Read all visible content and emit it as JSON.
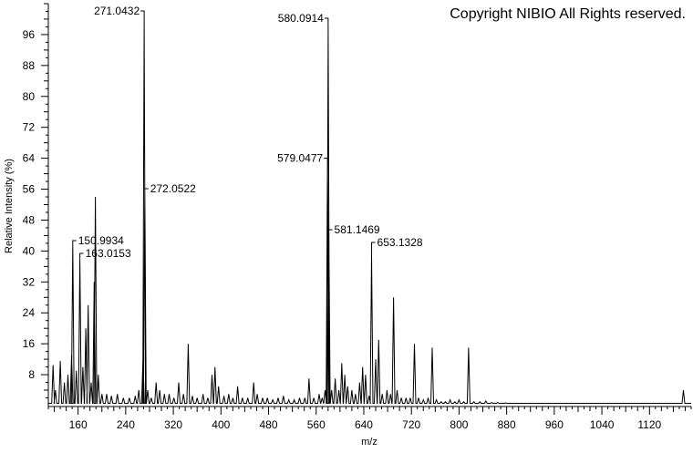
{
  "copyright": "Copyright NIBIO All Rights reserved.",
  "chart_data": {
    "type": "line",
    "title": "",
    "xlabel": "m/z",
    "ylabel": "Relative Intensity (%)",
    "xlim": [
      110,
      1190
    ],
    "ylim": [
      0,
      104
    ],
    "x_ticks": [
      160,
      240,
      320,
      400,
      480,
      560,
      640,
      720,
      800,
      880,
      960,
      1040,
      1120
    ],
    "y_ticks": [
      8,
      16,
      24,
      32,
      40,
      48,
      56,
      64,
      72,
      80,
      88,
      96
    ],
    "grid": false,
    "series": [
      {
        "name": "",
        "color": "#000000",
        "peaks": [
          {
            "x": 118,
            "y": 10.5
          },
          {
            "x": 122,
            "y": 4
          },
          {
            "x": 130,
            "y": 11.5
          },
          {
            "x": 137,
            "y": 6
          },
          {
            "x": 143,
            "y": 8
          },
          {
            "x": 149,
            "y": 13
          },
          {
            "x": 151,
            "y": 42
          },
          {
            "x": 157,
            "y": 9
          },
          {
            "x": 163,
            "y": 38
          },
          {
            "x": 168,
            "y": 10
          },
          {
            "x": 173,
            "y": 20
          },
          {
            "x": 177,
            "y": 26
          },
          {
            "x": 182,
            "y": 6
          },
          {
            "x": 187,
            "y": 32
          },
          {
            "x": 189,
            "y": 54
          },
          {
            "x": 194,
            "y": 8
          },
          {
            "x": 200,
            "y": 3
          },
          {
            "x": 208,
            "y": 3
          },
          {
            "x": 216,
            "y": 2.5
          },
          {
            "x": 226,
            "y": 3
          },
          {
            "x": 236,
            "y": 2
          },
          {
            "x": 246,
            "y": 2
          },
          {
            "x": 256,
            "y": 2.5
          },
          {
            "x": 262,
            "y": 4
          },
          {
            "x": 269,
            "y": 12
          },
          {
            "x": 271.0432,
            "y": 100
          },
          {
            "x": 272.0522,
            "y": 56
          },
          {
            "x": 277,
            "y": 4
          },
          {
            "x": 283,
            "y": 2
          },
          {
            "x": 291,
            "y": 6
          },
          {
            "x": 297,
            "y": 4
          },
          {
            "x": 305,
            "y": 3
          },
          {
            "x": 313,
            "y": 3
          },
          {
            "x": 321,
            "y": 2
          },
          {
            "x": 329,
            "y": 6
          },
          {
            "x": 337,
            "y": 3
          },
          {
            "x": 345,
            "y": 16
          },
          {
            "x": 352,
            "y": 2.5
          },
          {
            "x": 360,
            "y": 2
          },
          {
            "x": 370,
            "y": 3
          },
          {
            "x": 378,
            "y": 2
          },
          {
            "x": 385,
            "y": 8
          },
          {
            "x": 390,
            "y": 10
          },
          {
            "x": 396,
            "y": 5
          },
          {
            "x": 405,
            "y": 2.5
          },
          {
            "x": 413,
            "y": 3
          },
          {
            "x": 420,
            "y": 2
          },
          {
            "x": 428,
            "y": 5
          },
          {
            "x": 436,
            "y": 2
          },
          {
            "x": 445,
            "y": 2
          },
          {
            "x": 455,
            "y": 6
          },
          {
            "x": 461,
            "y": 3
          },
          {
            "x": 470,
            "y": 2
          },
          {
            "x": 478,
            "y": 2
          },
          {
            "x": 487,
            "y": 1.5
          },
          {
            "x": 496,
            "y": 2
          },
          {
            "x": 505,
            "y": 2.5
          },
          {
            "x": 514,
            "y": 1.5
          },
          {
            "x": 523,
            "y": 1.5
          },
          {
            "x": 532,
            "y": 2
          },
          {
            "x": 541,
            "y": 2
          },
          {
            "x": 548,
            "y": 7
          },
          {
            "x": 556,
            "y": 2
          },
          {
            "x": 565,
            "y": 3
          },
          {
            "x": 570,
            "y": 2
          },
          {
            "x": 575,
            "y": 4
          },
          {
            "x": 579.0477,
            "y": 64
          },
          {
            "x": 580.0914,
            "y": 98
          },
          {
            "x": 581.1469,
            "y": 45
          },
          {
            "x": 586,
            "y": 4
          },
          {
            "x": 592,
            "y": 7
          },
          {
            "x": 598,
            "y": 4
          },
          {
            "x": 603,
            "y": 11
          },
          {
            "x": 608,
            "y": 8
          },
          {
            "x": 613,
            "y": 5
          },
          {
            "x": 620,
            "y": 4
          },
          {
            "x": 626,
            "y": 3
          },
          {
            "x": 633,
            "y": 6
          },
          {
            "x": 638,
            "y": 10
          },
          {
            "x": 643,
            "y": 8
          },
          {
            "x": 649,
            "y": 2.5
          },
          {
            "x": 653.1328,
            "y": 39
          },
          {
            "x": 660,
            "y": 12
          },
          {
            "x": 665,
            "y": 17
          },
          {
            "x": 671,
            "y": 3
          },
          {
            "x": 679,
            "y": 4
          },
          {
            "x": 685,
            "y": 3
          },
          {
            "x": 690,
            "y": 28
          },
          {
            "x": 696,
            "y": 4
          },
          {
            "x": 703,
            "y": 2
          },
          {
            "x": 711,
            "y": 2
          },
          {
            "x": 718,
            "y": 2
          },
          {
            "x": 725,
            "y": 16
          },
          {
            "x": 732,
            "y": 2
          },
          {
            "x": 740,
            "y": 1.5
          },
          {
            "x": 748,
            "y": 2
          },
          {
            "x": 755,
            "y": 15
          },
          {
            "x": 762,
            "y": 1.5
          },
          {
            "x": 770,
            "y": 1
          },
          {
            "x": 777,
            "y": 1
          },
          {
            "x": 785,
            "y": 1.5
          },
          {
            "x": 793,
            "y": 1
          },
          {
            "x": 800,
            "y": 1.5
          },
          {
            "x": 808,
            "y": 1
          },
          {
            "x": 816,
            "y": 15
          },
          {
            "x": 825,
            "y": 1
          },
          {
            "x": 835,
            "y": 1
          },
          {
            "x": 845,
            "y": 1.2
          },
          {
            "x": 855,
            "y": 0.8
          },
          {
            "x": 865,
            "y": 0.8
          },
          {
            "x": 878,
            "y": 0.7
          },
          {
            "x": 930,
            "y": 0.6
          },
          {
            "x": 1177,
            "y": 4
          }
        ]
      }
    ],
    "annotations": [
      {
        "x": 151,
        "y": 42,
        "label": "150.9934"
      },
      {
        "x": 163,
        "y": 38,
        "label": "163.0153"
      },
      {
        "x": 271.0432,
        "y": 100,
        "label": "271.0432"
      },
      {
        "x": 272.0522,
        "y": 56,
        "label": "272.0522"
      },
      {
        "x": 580.0914,
        "y": 98,
        "label": "580.0914"
      },
      {
        "x": 579.0477,
        "y": 64,
        "label": "579.0477"
      },
      {
        "x": 581.1469,
        "y": 45,
        "label": "581.1469"
      },
      {
        "x": 653.1328,
        "y": 39,
        "label": "653.1328"
      }
    ]
  }
}
